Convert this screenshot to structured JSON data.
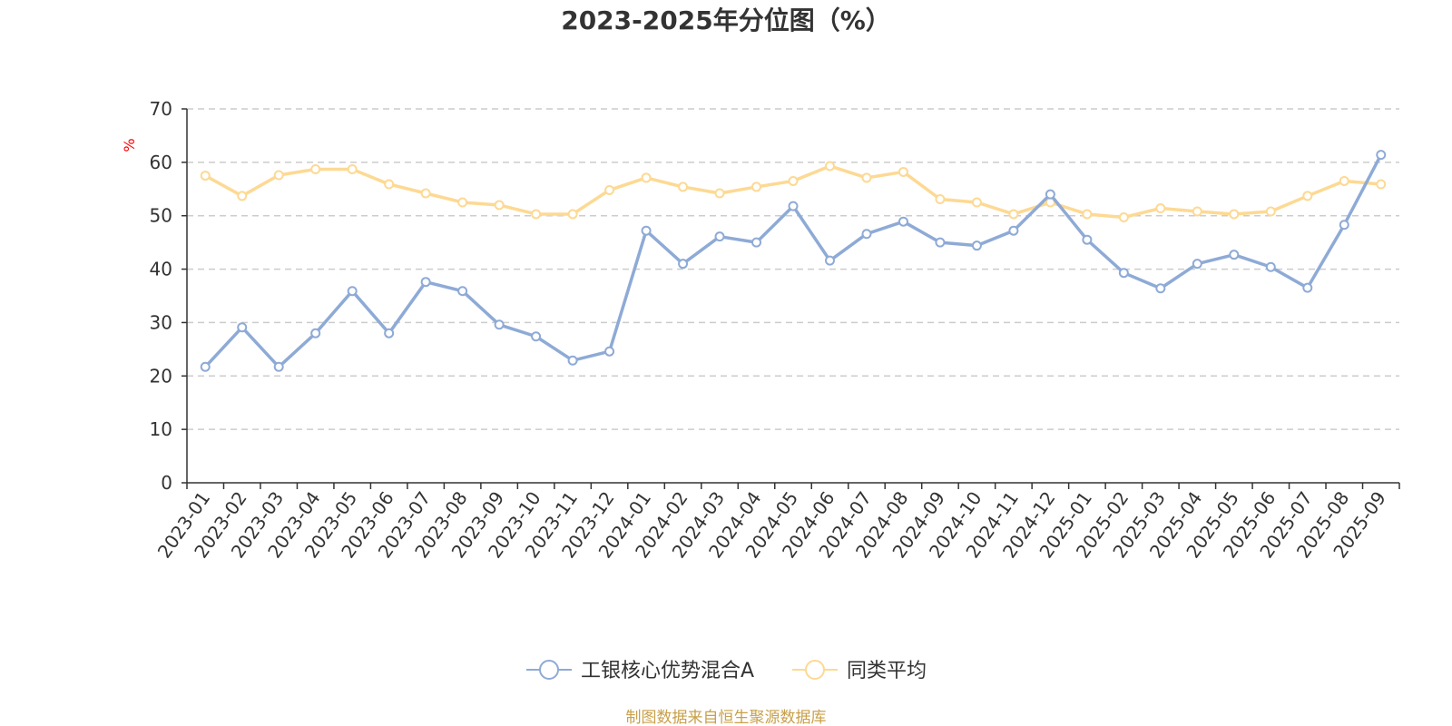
{
  "chart_data": {
    "type": "line",
    "title": "2023-2025年分位图（%）",
    "ylabel": "%",
    "xlabel": "",
    "ylim": [
      0,
      70
    ],
    "yticks": [
      0,
      10,
      20,
      30,
      40,
      50,
      60,
      70
    ],
    "grid": true,
    "legend_position": "bottom-center",
    "categories": [
      "2023-01",
      "2023-02",
      "2023-03",
      "2023-04",
      "2023-05",
      "2023-06",
      "2023-07",
      "2023-08",
      "2023-09",
      "2023-10",
      "2023-11",
      "2023-12",
      "2024-01",
      "2024-02",
      "2024-03",
      "2024-04",
      "2024-05",
      "2024-06",
      "2024-07",
      "2024-08",
      "2024-09",
      "2024-10",
      "2024-11",
      "2024-12",
      "2025-01",
      "2025-02",
      "2025-03",
      "2025-04",
      "2025-05",
      "2025-06",
      "2025-07",
      "2025-08",
      "2025-09"
    ],
    "series": [
      {
        "name": "工银核心优势混合A",
        "color": "#8eaad6",
        "values": [
          21.7,
          29.1,
          21.7,
          28.0,
          35.9,
          28.0,
          37.6,
          35.9,
          29.6,
          27.4,
          22.9,
          24.6,
          47.2,
          41.0,
          46.1,
          45.0,
          51.8,
          41.6,
          46.6,
          48.9,
          45.0,
          44.4,
          47.2,
          54.0,
          45.5,
          39.3,
          36.4,
          41.0,
          42.7,
          40.4,
          36.5,
          48.3,
          61.4
        ]
      },
      {
        "name": "同类平均",
        "color": "#fdd993",
        "values": [
          57.5,
          53.7,
          57.6,
          58.7,
          58.7,
          55.9,
          54.2,
          52.5,
          52.0,
          50.3,
          50.3,
          54.8,
          57.1,
          55.4,
          54.2,
          55.4,
          56.5,
          59.3,
          57.1,
          58.2,
          53.1,
          52.5,
          50.3,
          52.5,
          50.3,
          49.7,
          51.4,
          50.8,
          50.3,
          50.8,
          53.7,
          56.5,
          55.9
        ]
      }
    ]
  },
  "footer": {
    "source_text": "制图数据来自恒生聚源数据库",
    "source_color": "#c8a04a"
  }
}
